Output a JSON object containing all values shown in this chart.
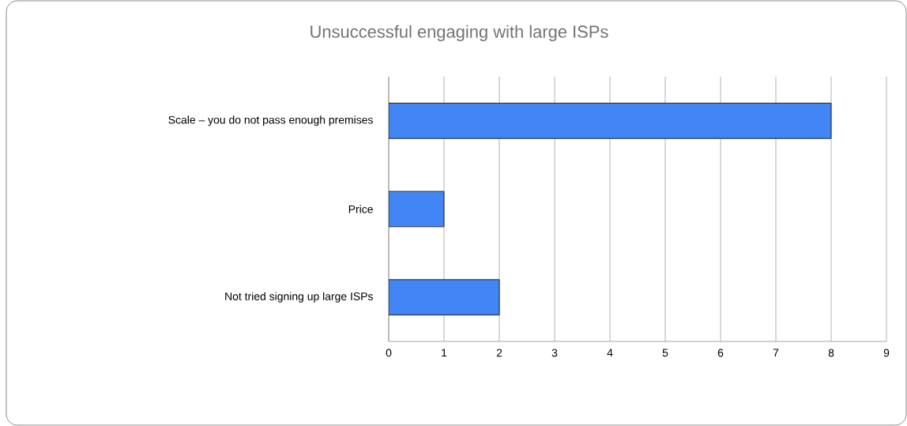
{
  "chart_data": {
    "type": "bar",
    "orientation": "horizontal",
    "title": "Unsuccessful engaging with large ISPs",
    "categories": [
      "Scale – you do not pass enough premises",
      "Price",
      "Not tried signing up large ISPs"
    ],
    "values": [
      8,
      1,
      2
    ],
    "color": "#4285f4",
    "xlim": [
      0,
      9
    ],
    "xticks": [
      0,
      1,
      2,
      3,
      4,
      5,
      6,
      7,
      8,
      9
    ],
    "grid": "x"
  }
}
